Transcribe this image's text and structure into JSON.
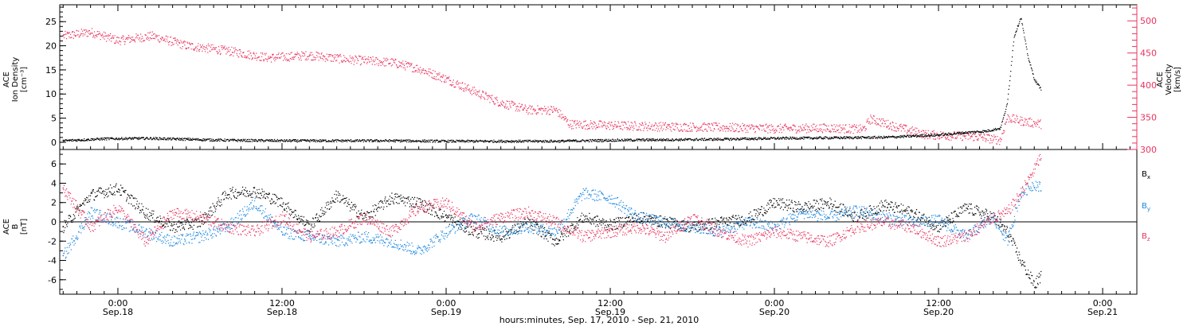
{
  "figure": {
    "xlabel": "hours:minutes, Sep. 17, 2010 - Sep. 21, 2010",
    "x_ticks": [
      {
        "time": "2010-09-18T00:00",
        "label_time": "0:00",
        "label_date": "Sep.18"
      },
      {
        "time": "2010-09-18T12:00",
        "label_time": "12:00",
        "label_date": "Sep.18"
      },
      {
        "time": "2010-09-19T00:00",
        "label_time": "0:00",
        "label_date": "Sep.19"
      },
      {
        "time": "2010-09-19T12:00",
        "label_time": "12:00",
        "label_date": "Sep.19"
      },
      {
        "time": "2010-09-20T00:00",
        "label_time": "0:00",
        "label_date": "Sep.20"
      },
      {
        "time": "2010-09-20T12:00",
        "label_time": "12:00",
        "label_date": "Sep.20"
      },
      {
        "time": "2010-09-21T00:00",
        "label_time": "0:00",
        "label_date": "Sep.21"
      }
    ],
    "colors": {
      "black": "#000000",
      "red": "#e8345f",
      "blue": "#1a86e0"
    }
  },
  "chart_data": [
    {
      "type": "scatter",
      "xlim": [
        "2010-09-17T19:45",
        "2010-09-21T02:30"
      ],
      "ylabel_left": [
        "ACE",
        "Ion Density",
        "[cm⁻³]"
      ],
      "ylabel_right": [
        "ACE",
        "Velocity",
        "[km/s]"
      ],
      "ylim_left": [
        -1.5,
        28.5
      ],
      "ylim_right": [
        300,
        525
      ],
      "left_ticks": [
        "0",
        "5",
        "10",
        "15",
        "20",
        "25"
      ],
      "right_ticks": [
        "300",
        "350",
        "400",
        "450",
        "500"
      ],
      "series": [
        {
          "axis": "left",
          "color": "#000000",
          "x": [
            "2010-09-17T20:00",
            "2010-09-17T23:00",
            "2010-09-18T02:00",
            "2010-09-18T05:00",
            "2010-09-18T08:00",
            "2010-09-18T12:00",
            "2010-09-18T16:00",
            "2010-09-18T20:00",
            "2010-09-19T00:00",
            "2010-09-19T04:00",
            "2010-09-19T08:00",
            "2010-09-19T12:00",
            "2010-09-19T16:00",
            "2010-09-19T20:00",
            "2010-09-20T00:00",
            "2010-09-20T04:00",
            "2010-09-20T08:00",
            "2010-09-20T12:00",
            "2010-09-20T14:00",
            "2010-09-20T15:30",
            "2010-09-20T16:30",
            "2010-09-20T17:00",
            "2010-09-20T17:30",
            "2010-09-20T18:00",
            "2010-09-20T18:30",
            "2010-09-20T19:00",
            "2010-09-20T19:30"
          ],
          "y": [
            0.4,
            0.8,
            0.9,
            0.7,
            0.5,
            0.4,
            0.4,
            0.4,
            0.3,
            0.3,
            0.3,
            0.5,
            0.6,
            0.7,
            0.9,
            1.0,
            1.1,
            1.6,
            2.1,
            2.4,
            3.0,
            8.0,
            22,
            26,
            18,
            13,
            11
          ]
        },
        {
          "axis": "right",
          "color": "#e8345f",
          "x": [
            "2010-09-17T20:00",
            "2010-09-17T22:00",
            "2010-09-18T00:00",
            "2010-09-18T02:30",
            "2010-09-18T05:00",
            "2010-09-18T08:00",
            "2010-09-18T11:00",
            "2010-09-18T14:00",
            "2010-09-18T17:00",
            "2010-09-18T20:00",
            "2010-09-18T22:00",
            "2010-09-19T00:00",
            "2010-09-19T02:00",
            "2010-09-19T04:00",
            "2010-09-19T06:00",
            "2010-09-19T08:00",
            "2010-09-19T09:00",
            "2010-09-19T12:00",
            "2010-09-19T16:00",
            "2010-09-19T20:00",
            "2010-09-20T00:00",
            "2010-09-20T04:00",
            "2010-09-20T06:30",
            "2010-09-20T07:00",
            "2010-09-20T09:00",
            "2010-09-20T11:00",
            "2010-09-20T13:00",
            "2010-09-20T15:00",
            "2010-09-20T16:30",
            "2010-09-20T17:00",
            "2010-09-20T18:00",
            "2010-09-20T19:30"
          ],
          "y": [
            477,
            483,
            470,
            477,
            462,
            454,
            443,
            447,
            440,
            436,
            426,
            410,
            391,
            373,
            362,
            362,
            340,
            338,
            336,
            335,
            333,
            334,
            332,
            348,
            335,
            324,
            322,
            320,
            315,
            350,
            345,
            340
          ]
        }
      ]
    },
    {
      "type": "scatter",
      "xlim": [
        "2010-09-17T19:45",
        "2010-09-21T02:30"
      ],
      "ylabel_left": [
        "ACE",
        "B",
        "[nT]"
      ],
      "ylim": [
        -7.5,
        7.5
      ],
      "left_ticks": [
        "6",
        "4",
        "2",
        "0",
        "-2",
        "-4",
        "-6"
      ],
      "series": [
        {
          "name": "Bx",
          "color": "#000000",
          "x": [
            "2010-09-17T20:00",
            "2010-09-17T22:00",
            "2010-09-18T00:00",
            "2010-09-18T02:00",
            "2010-09-18T04:00",
            "2010-09-18T06:00",
            "2010-09-18T08:00",
            "2010-09-18T10:00",
            "2010-09-18T12:00",
            "2010-09-18T14:00",
            "2010-09-18T16:00",
            "2010-09-18T18:00",
            "2010-09-18T20:00",
            "2010-09-18T22:00",
            "2010-09-19T00:00",
            "2010-09-19T02:00",
            "2010-09-19T04:00",
            "2010-09-19T06:00",
            "2010-09-19T08:00",
            "2010-09-19T10:00",
            "2010-09-19T12:00",
            "2010-09-19T14:00",
            "2010-09-19T16:00",
            "2010-09-19T18:00",
            "2010-09-19T20:00",
            "2010-09-19T22:00",
            "2010-09-20T00:00",
            "2010-09-20T02:00",
            "2010-09-20T04:00",
            "2010-09-20T06:00",
            "2010-09-20T08:00",
            "2010-09-20T10:00",
            "2010-09-20T12:00",
            "2010-09-20T14:00",
            "2010-09-20T16:00",
            "2010-09-20T17:00",
            "2010-09-20T18:00",
            "2010-09-20T19:00",
            "2010-09-20T19:30"
          ],
          "y": [
            -0.5,
            2.8,
            3.5,
            1.0,
            -0.5,
            0.0,
            3.0,
            3.2,
            2.0,
            -0.5,
            2.8,
            0.5,
            2.5,
            2.0,
            0.5,
            -1.0,
            -1.5,
            0.0,
            -2.0,
            0.5,
            -0.3,
            0.5,
            0.0,
            -0.5,
            0.0,
            0.3,
            2.0,
            1.5,
            2.0,
            0.5,
            1.8,
            1.0,
            -0.5,
            1.5,
            0.5,
            -1.0,
            -4.0,
            -6.5,
            -5.5
          ]
        },
        {
          "name": "By",
          "color": "#1a86e0",
          "x": [
            "2010-09-17T20:00",
            "2010-09-17T22:00",
            "2010-09-18T00:00",
            "2010-09-18T02:00",
            "2010-09-18T04:00",
            "2010-09-18T06:00",
            "2010-09-18T08:00",
            "2010-09-18T10:00",
            "2010-09-18T12:00",
            "2010-09-18T14:00",
            "2010-09-18T16:00",
            "2010-09-18T18:00",
            "2010-09-18T20:00",
            "2010-09-18T22:00",
            "2010-09-19T00:00",
            "2010-09-19T02:00",
            "2010-09-19T04:00",
            "2010-09-19T06:00",
            "2010-09-19T08:00",
            "2010-09-19T10:00",
            "2010-09-19T12:00",
            "2010-09-19T14:00",
            "2010-09-19T16:00",
            "2010-09-19T18:00",
            "2010-09-19T20:00",
            "2010-09-19T22:00",
            "2010-09-20T00:00",
            "2010-09-20T02:00",
            "2010-09-20T04:00",
            "2010-09-20T06:00",
            "2010-09-20T08:00",
            "2010-09-20T10:00",
            "2010-09-20T12:00",
            "2010-09-20T14:00",
            "2010-09-20T16:00",
            "2010-09-20T17:00",
            "2010-09-20T18:00",
            "2010-09-20T19:00",
            "2010-09-20T19:30"
          ],
          "y": [
            -3.5,
            1.0,
            0.0,
            -1.0,
            -2.0,
            -1.5,
            -0.5,
            2.0,
            -1.0,
            -1.5,
            -2.0,
            -1.5,
            -2.0,
            -3.0,
            -1.0,
            0.5,
            -1.0,
            -0.5,
            -1.0,
            3.0,
            2.5,
            0.5,
            0.0,
            -0.5,
            -1.0,
            0.0,
            -0.5,
            1.0,
            0.5,
            1.2,
            0.5,
            0.0,
            0.2,
            -1.5,
            0.5,
            -2.0,
            3.0,
            4.0,
            3.5
          ]
        },
        {
          "name": "Bz",
          "color": "#e8345f",
          "x": [
            "2010-09-17T20:00",
            "2010-09-17T22:00",
            "2010-09-18T00:00",
            "2010-09-18T02:00",
            "2010-09-18T04:00",
            "2010-09-18T06:00",
            "2010-09-18T08:00",
            "2010-09-18T10:00",
            "2010-09-18T12:00",
            "2010-09-18T14:00",
            "2010-09-18T16:00",
            "2010-09-18T18:00",
            "2010-09-18T20:00",
            "2010-09-18T22:00",
            "2010-09-19T00:00",
            "2010-09-19T02:00",
            "2010-09-19T04:00",
            "2010-09-19T06:00",
            "2010-09-19T08:00",
            "2010-09-19T10:00",
            "2010-09-19T12:00",
            "2010-09-19T14:00",
            "2010-09-19T16:00",
            "2010-09-19T18:00",
            "2010-09-19T20:00",
            "2010-09-19T22:00",
            "2010-09-20T00:00",
            "2010-09-20T02:00",
            "2010-09-20T04:00",
            "2010-09-20T06:00",
            "2010-09-20T08:00",
            "2010-09-20T10:00",
            "2010-09-20T12:00",
            "2010-09-20T14:00",
            "2010-09-20T16:00",
            "2010-09-20T17:00",
            "2010-09-20T18:00",
            "2010-09-20T19:00",
            "2010-09-20T19:30"
          ],
          "y": [
            3.5,
            -0.5,
            1.5,
            -2.0,
            1.0,
            0.5,
            -0.5,
            -1.0,
            0.5,
            -1.5,
            -1.0,
            0.5,
            -1.0,
            1.5,
            2.0,
            -0.5,
            0.5,
            1.0,
            0.0,
            -1.5,
            -1.0,
            -0.5,
            -1.5,
            0.5,
            -1.0,
            -2.0,
            -1.0,
            -1.5,
            -2.0,
            -0.5,
            0.0,
            -0.5,
            -2.0,
            -1.5,
            0.5,
            1.0,
            3.0,
            5.5,
            7.0
          ]
        }
      ],
      "legend": [
        {
          "base": "B",
          "sub": "x",
          "color": "#000000"
        },
        {
          "base": "B",
          "sub": "y",
          "color": "#1a86e0"
        },
        {
          "base": "B",
          "sub": "z",
          "color": "#e8345f"
        }
      ]
    }
  ]
}
